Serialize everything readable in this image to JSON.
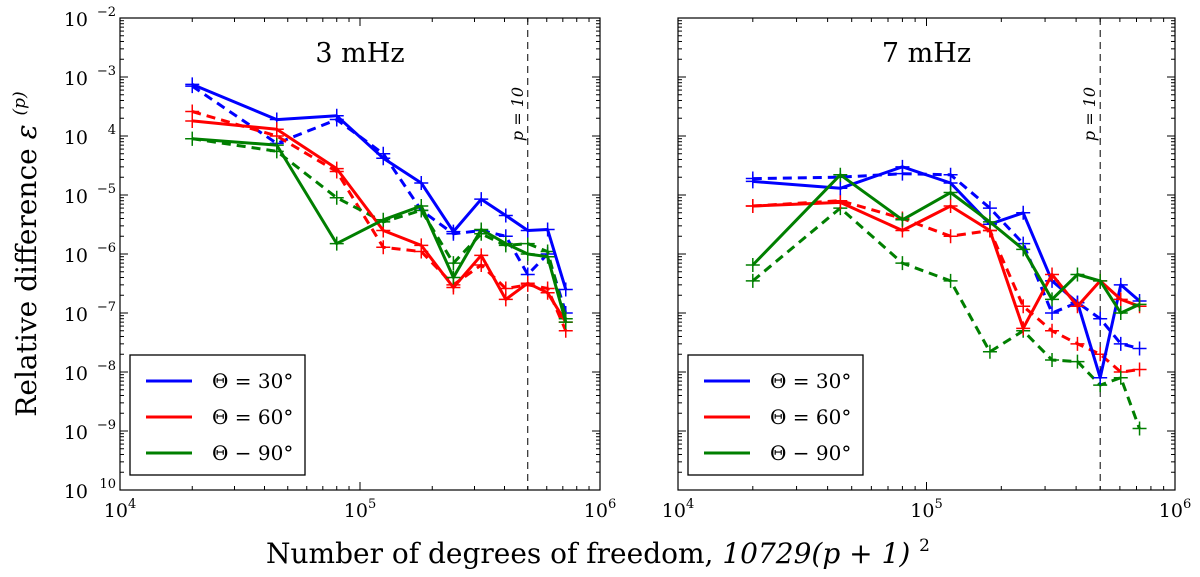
{
  "chart_data": {
    "type": "line",
    "ylabel_text": "Relative difference",
    "ylabel_symbol": "ε",
    "ylabel_sup": "(p)",
    "xlabel_text": "Number of degrees of freedom,",
    "xlabel_math": "10729(p + 1)",
    "xlabel_sup": "2",
    "xscale": "log",
    "yscale": "log",
    "xlim": [
      10000,
      1000000
    ],
    "ylim": [
      1e-10,
      0.01
    ],
    "x_ticks": [
      {
        "value": 10000,
        "base": "10",
        "exp": "4"
      },
      {
        "value": 100000,
        "base": "10",
        "exp": "5"
      },
      {
        "value": 1000000,
        "base": "10",
        "exp": "6"
      }
    ],
    "y_ticks": [
      {
        "value": 0.01,
        "base": "10",
        "exp": "−2"
      },
      {
        "value": 0.001,
        "base": "10",
        "exp": "−3"
      },
      {
        "value": 0.0001,
        "base": "10",
        "exp": "4"
      },
      {
        "value": 1e-05,
        "base": "10",
        "exp": "−5"
      },
      {
        "value": 1e-06,
        "base": "10",
        "exp": "−6"
      },
      {
        "value": 1e-07,
        "base": "10",
        "exp": "−7"
      },
      {
        "value": 1e-08,
        "base": "10",
        "exp": "−8"
      },
      {
        "value": 1e-09,
        "base": "10",
        "exp": "−9"
      },
      {
        "value": 1e-10,
        "base": "10",
        "exp": "10"
      }
    ],
    "x": [
      20000,
      45000,
      80000,
      125000,
      180000,
      245000,
      320000,
      405000,
      500000,
      605000,
      720000
    ],
    "vline": {
      "x": 500000,
      "label": "p = 10"
    },
    "legend": {
      "placement": "lower-left",
      "entries": [
        {
          "label": "Θ = 30°",
          "color": "#0000ff"
        },
        {
          "label": "Θ = 60°",
          "color": "#ff0000"
        },
        {
          "label": "Θ − 90°",
          "color": "#007f00"
        }
      ]
    },
    "panels": [
      {
        "title": "3 mHz",
        "series": [
          {
            "name": "Θ = 30°",
            "style": "solid",
            "color": "#0000ff",
            "values": [
              0.00075,
              0.00019,
              0.00022,
              4.2e-05,
              1.6e-05,
              2.4e-06,
              8.5e-06,
              4.5e-06,
              2.5e-06,
              2.6e-06,
              2.5e-07
            ]
          },
          {
            "name": "Θ = 30°",
            "style": "dashed",
            "color": "#0000ff",
            "values": [
              0.0007,
              7.5e-05,
              0.00019,
              5e-05,
              5.5e-06,
              2.2e-06,
              2.5e-06,
              2e-06,
              4.5e-07,
              1e-06,
              1e-07
            ]
          },
          {
            "name": "Θ = 60°",
            "style": "solid",
            "color": "#ff0000",
            "values": [
              0.00018,
              0.00013,
              2.8e-05,
              2.5e-06,
              1.4e-06,
              2.7e-07,
              9.5e-07,
              1.7e-07,
              3.2e-07,
              2.2e-07,
              7e-08
            ]
          },
          {
            "name": "Θ = 60°",
            "style": "dashed",
            "color": "#ff0000",
            "values": [
              0.00026,
              0.0001,
              2.5e-05,
              1.3e-06,
              1.1e-06,
              3e-07,
              6.5e-07,
              2.6e-07,
              3e-07,
              2.6e-07,
              5e-08
            ]
          },
          {
            "name": "Θ − 90°",
            "style": "solid",
            "color": "#007f00",
            "values": [
              9e-05,
              7e-05,
              1.5e-06,
              3.8e-06,
              6.5e-06,
              4e-07,
              2.6e-06,
              1.5e-06,
              1e-06,
              9e-07,
              7e-08
            ]
          },
          {
            "name": "Θ − 90°",
            "style": "dashed",
            "color": "#007f00",
            "values": [
              9e-05,
              5.5e-05,
              9e-06,
              3.5e-06,
              5.5e-06,
              7e-07,
              2.2e-06,
              1.4e-06,
              1.5e-06,
              1.1e-06,
              8e-08
            ]
          }
        ]
      },
      {
        "title": "7 mHz",
        "series": [
          {
            "name": "Θ = 30°",
            "style": "solid",
            "color": "#0000ff",
            "values": [
              1.7e-05,
              1.3e-05,
              3e-05,
              1.6e-05,
              3.2e-06,
              5e-06,
              3.5e-07,
              1.5e-07,
              8e-09,
              3e-07,
              1.6e-07
            ]
          },
          {
            "name": "Θ = 30°",
            "style": "dashed",
            "color": "#0000ff",
            "values": [
              1.9e-05,
              2e-05,
              2.3e-05,
              2.2e-05,
              6e-06,
              1.5e-06,
              1e-07,
              1.5e-07,
              8e-08,
              3e-08,
              2.5e-08
            ]
          },
          {
            "name": "Θ = 60°",
            "style": "solid",
            "color": "#ff0000",
            "values": [
              6.5e-06,
              7.5e-06,
              2.5e-06,
              6.5e-06,
              2.5e-06,
              5.5e-08,
              4.5e-07,
              1.3e-07,
              3.5e-07,
              1.7e-07,
              1.3e-07
            ]
          },
          {
            "name": "Θ = 60°",
            "style": "dashed",
            "color": "#ff0000",
            "values": [
              6.5e-06,
              8e-06,
              4e-06,
              2e-06,
              2.5e-06,
              1.3e-07,
              5e-08,
              3e-08,
              2e-08,
              1e-08,
              1.1e-08
            ]
          },
          {
            "name": "Θ − 90°",
            "style": "solid",
            "color": "#007f00",
            "values": [
              6.5e-07,
              2.2e-05,
              3.8e-06,
              1.1e-05,
              3.5e-06,
              1.2e-06,
              1.7e-07,
              4.5e-07,
              3.5e-07,
              1e-07,
              1.4e-07
            ]
          },
          {
            "name": "Θ − 90°",
            "style": "dashed",
            "color": "#007f00",
            "values": [
              3.5e-07,
              6e-06,
              7e-07,
              3.5e-07,
              2.2e-08,
              5e-08,
              1.6e-08,
              1.5e-08,
              6e-09,
              8e-09,
              1.1e-09
            ]
          }
        ]
      }
    ]
  }
}
